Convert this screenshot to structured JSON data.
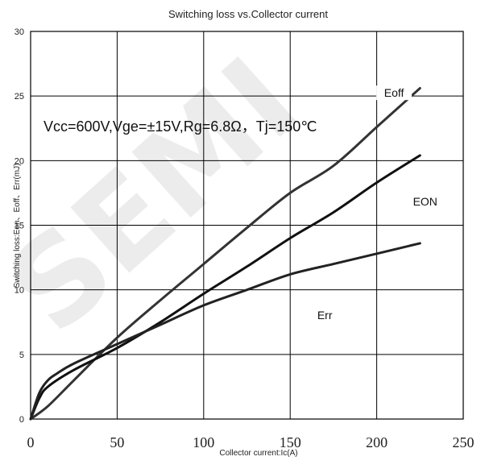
{
  "chart_data": {
    "type": "line",
    "title": "Switching loss vs.Collector current",
    "xlabel": "Collector current:Ic(A)",
    "ylabel": "Switching loss:Eon、Eoff、Err(mJ)",
    "xlim": [
      0,
      250
    ],
    "ylim": [
      0,
      30
    ],
    "xticks": [
      "0",
      "50",
      "100",
      "150",
      "200",
      "250"
    ],
    "yticks": [
      "0",
      "5",
      "10",
      "15",
      "20",
      "25",
      "30"
    ],
    "grid": true,
    "annotation": "Vcc=600V,Vge=±15V,Rg=6.8Ω，Tj=150℃",
    "watermark": "SEMI",
    "series": [
      {
        "name": "Eoff",
        "color": "#333333",
        "x": [
          0,
          10,
          25,
          50,
          75,
          100,
          125,
          150,
          175,
          200,
          225
        ],
        "y": [
          0,
          1.0,
          3.0,
          6.3,
          9.2,
          12.0,
          14.8,
          17.5,
          19.6,
          22.6,
          25.6
        ]
      },
      {
        "name": "EON",
        "color": "#111111",
        "x": [
          0,
          5,
          10,
          25,
          50,
          75,
          100,
          125,
          150,
          175,
          200,
          225
        ],
        "y": [
          0,
          1.6,
          2.5,
          3.8,
          5.5,
          7.5,
          9.7,
          11.8,
          14.0,
          16.0,
          18.3,
          20.4
        ]
      },
      {
        "name": "Err",
        "color": "#222222",
        "x": [
          0,
          5,
          10,
          15,
          25,
          50,
          75,
          100,
          125,
          150,
          175,
          200,
          225
        ],
        "y": [
          0,
          2.0,
          3.0,
          3.5,
          4.3,
          5.8,
          7.3,
          8.8,
          10.0,
          11.2,
          12.0,
          12.8,
          13.6
        ]
      }
    ],
    "series_label_positions": {
      "Eoff": [
        210,
        25
      ],
      "EON": [
        228,
        16.6
      ],
      "Err": [
        170,
        7.8
      ]
    }
  }
}
